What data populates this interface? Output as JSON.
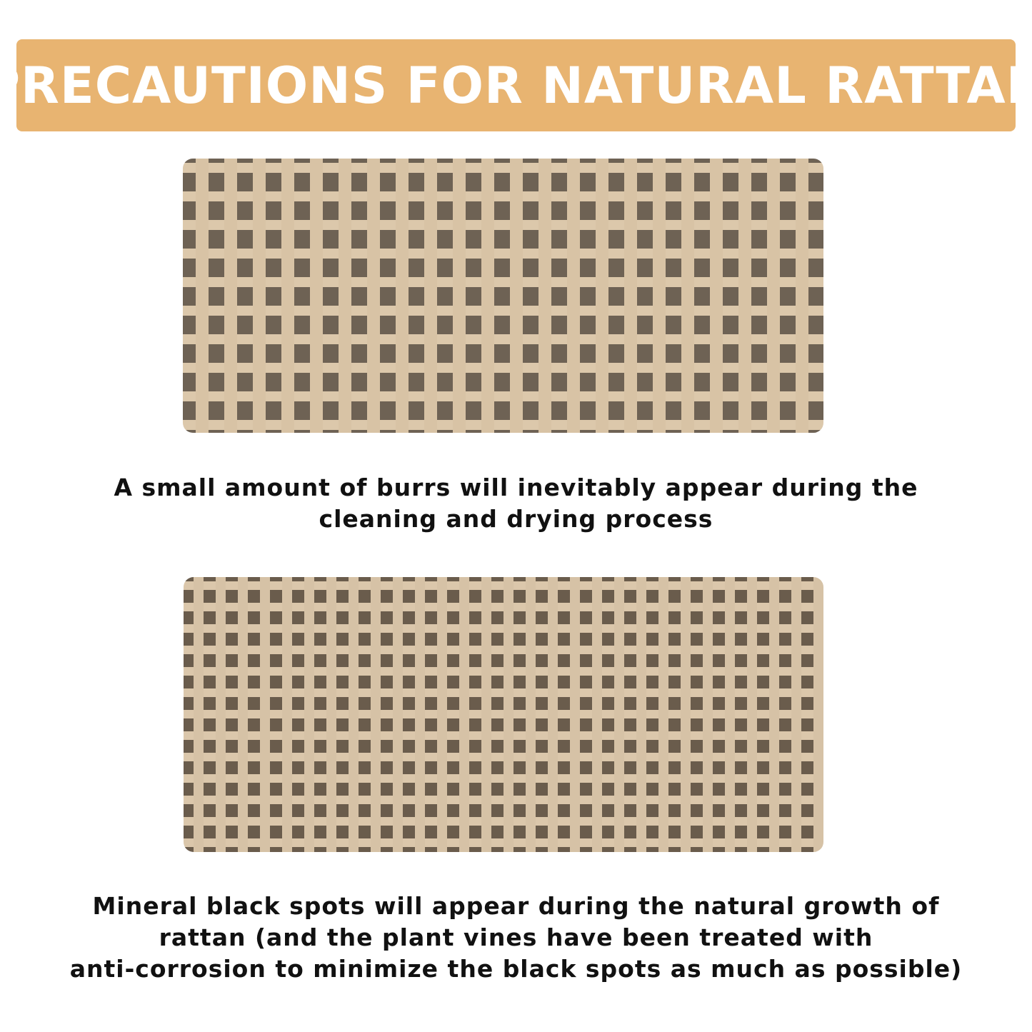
{
  "colors": {
    "banner": "#e8b471",
    "text": "#111111"
  },
  "banner": {
    "title": "PRECAUTIONS FOR NATURAL RATTAN"
  },
  "sections": [
    {
      "image": "rattan-weave-burrs",
      "caption_lines": [
        "A small amount of burrs will inevitably appear during the",
        "cleaning and drying process"
      ]
    },
    {
      "image": "rattan-weave-black-spots",
      "caption_lines": [
        "Mineral black spots will appear during the natural growth of",
        "rattan (and the plant vines have been treated with",
        "anti-corrosion to minimize the black spots as much as possible)"
      ]
    }
  ]
}
